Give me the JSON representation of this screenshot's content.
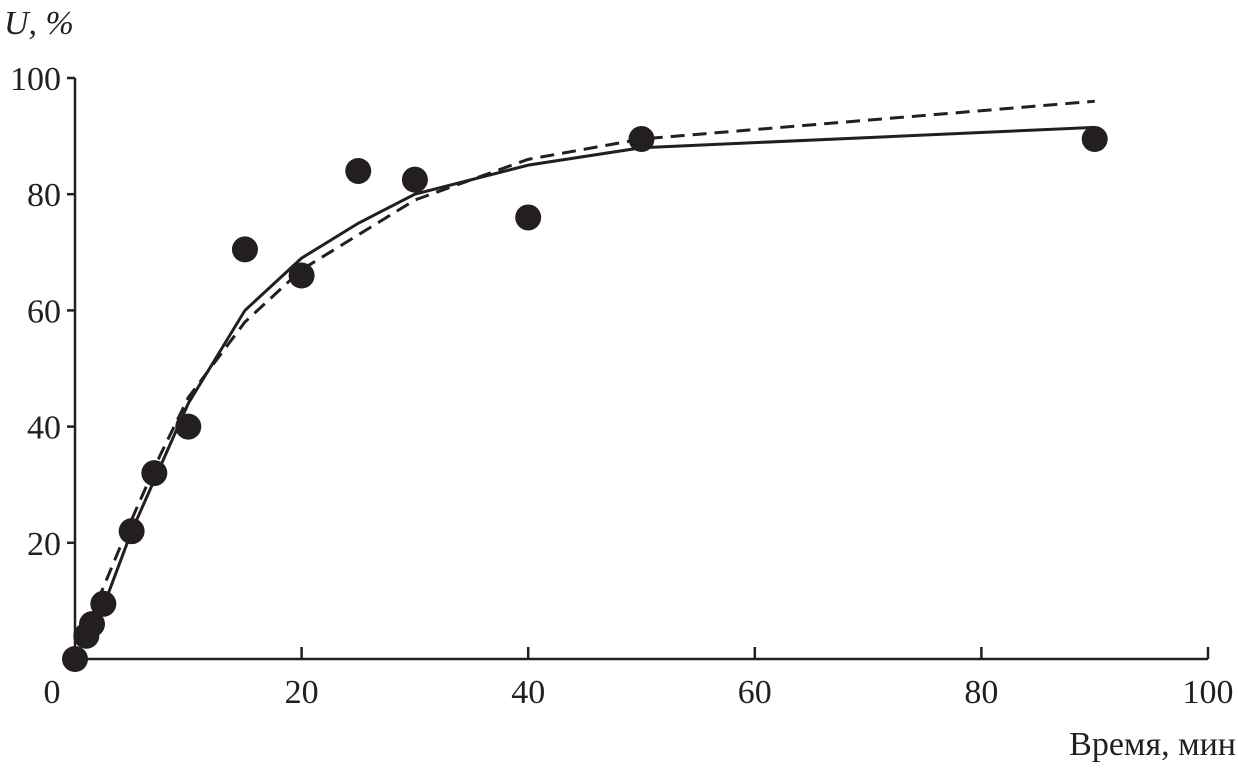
{
  "chart_data": {
    "type": "scatter",
    "y_label": "U, %",
    "x_label": "Время, мин",
    "xlim": [
      0,
      100
    ],
    "ylim": [
      0,
      100
    ],
    "xticks": [
      0,
      20,
      40,
      60,
      80,
      100
    ],
    "yticks": [
      20,
      40,
      60,
      80,
      100
    ],
    "points": {
      "color": "#231f20",
      "x": [
        0,
        1,
        1.5,
        2.5,
        5,
        7,
        10,
        15,
        20,
        25,
        30,
        40,
        50,
        90
      ],
      "values": [
        0,
        4,
        6,
        9.5,
        22,
        32,
        40,
        70.5,
        66,
        84,
        82.5,
        76,
        89.5,
        89.5
      ]
    },
    "lines": [
      {
        "color": "#231f20",
        "dash": false,
        "x": [
          2.5,
          5,
          7.5,
          10,
          15,
          20,
          25,
          30,
          40,
          50,
          90
        ],
        "values": [
          9,
          22,
          33,
          44,
          60,
          69,
          75,
          80,
          85,
          88,
          91.5
        ]
      },
      {
        "color": "#231f20",
        "dash": true,
        "x": [
          2,
          5,
          7.5,
          10,
          15,
          20,
          25,
          30,
          40,
          50,
          90
        ],
        "values": [
          10,
          24,
          35,
          45,
          58,
          67,
          73,
          79,
          86,
          89.5,
          96
        ]
      }
    ]
  }
}
